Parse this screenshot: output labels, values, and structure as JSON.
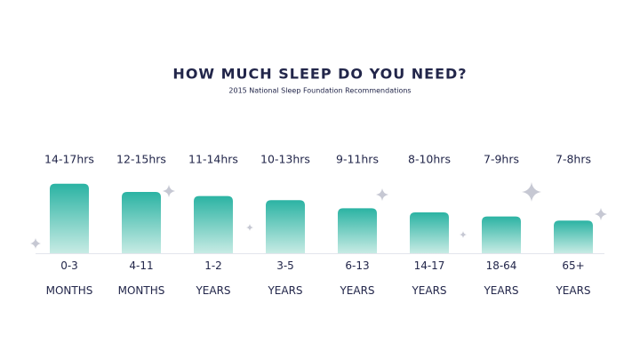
{
  "chart_data": {
    "type": "bar",
    "title": "HOW MUCH SLEEP DO YOU NEED?",
    "subtitle": "2015 National Sleep Foundation Recommendations",
    "categories": [
      "0-3 MONTHS",
      "4-11 MONTHS",
      "1-2 YEARS",
      "3-5 YEARS",
      "6-13 YEARS",
      "14-17 YEARS",
      "18-64 YEARS",
      "65+ YEARS"
    ],
    "values": [
      17,
      15,
      14,
      13,
      11,
      10,
      9,
      8
    ],
    "value_labels": [
      "14-17hrs",
      "12-15hrs",
      "11-14hrs",
      "10-13hrs",
      "9-11hrs",
      "8-10hrs",
      "7-9hrs",
      "7-8hrs"
    ],
    "color": "#2bb3a3"
  }
}
